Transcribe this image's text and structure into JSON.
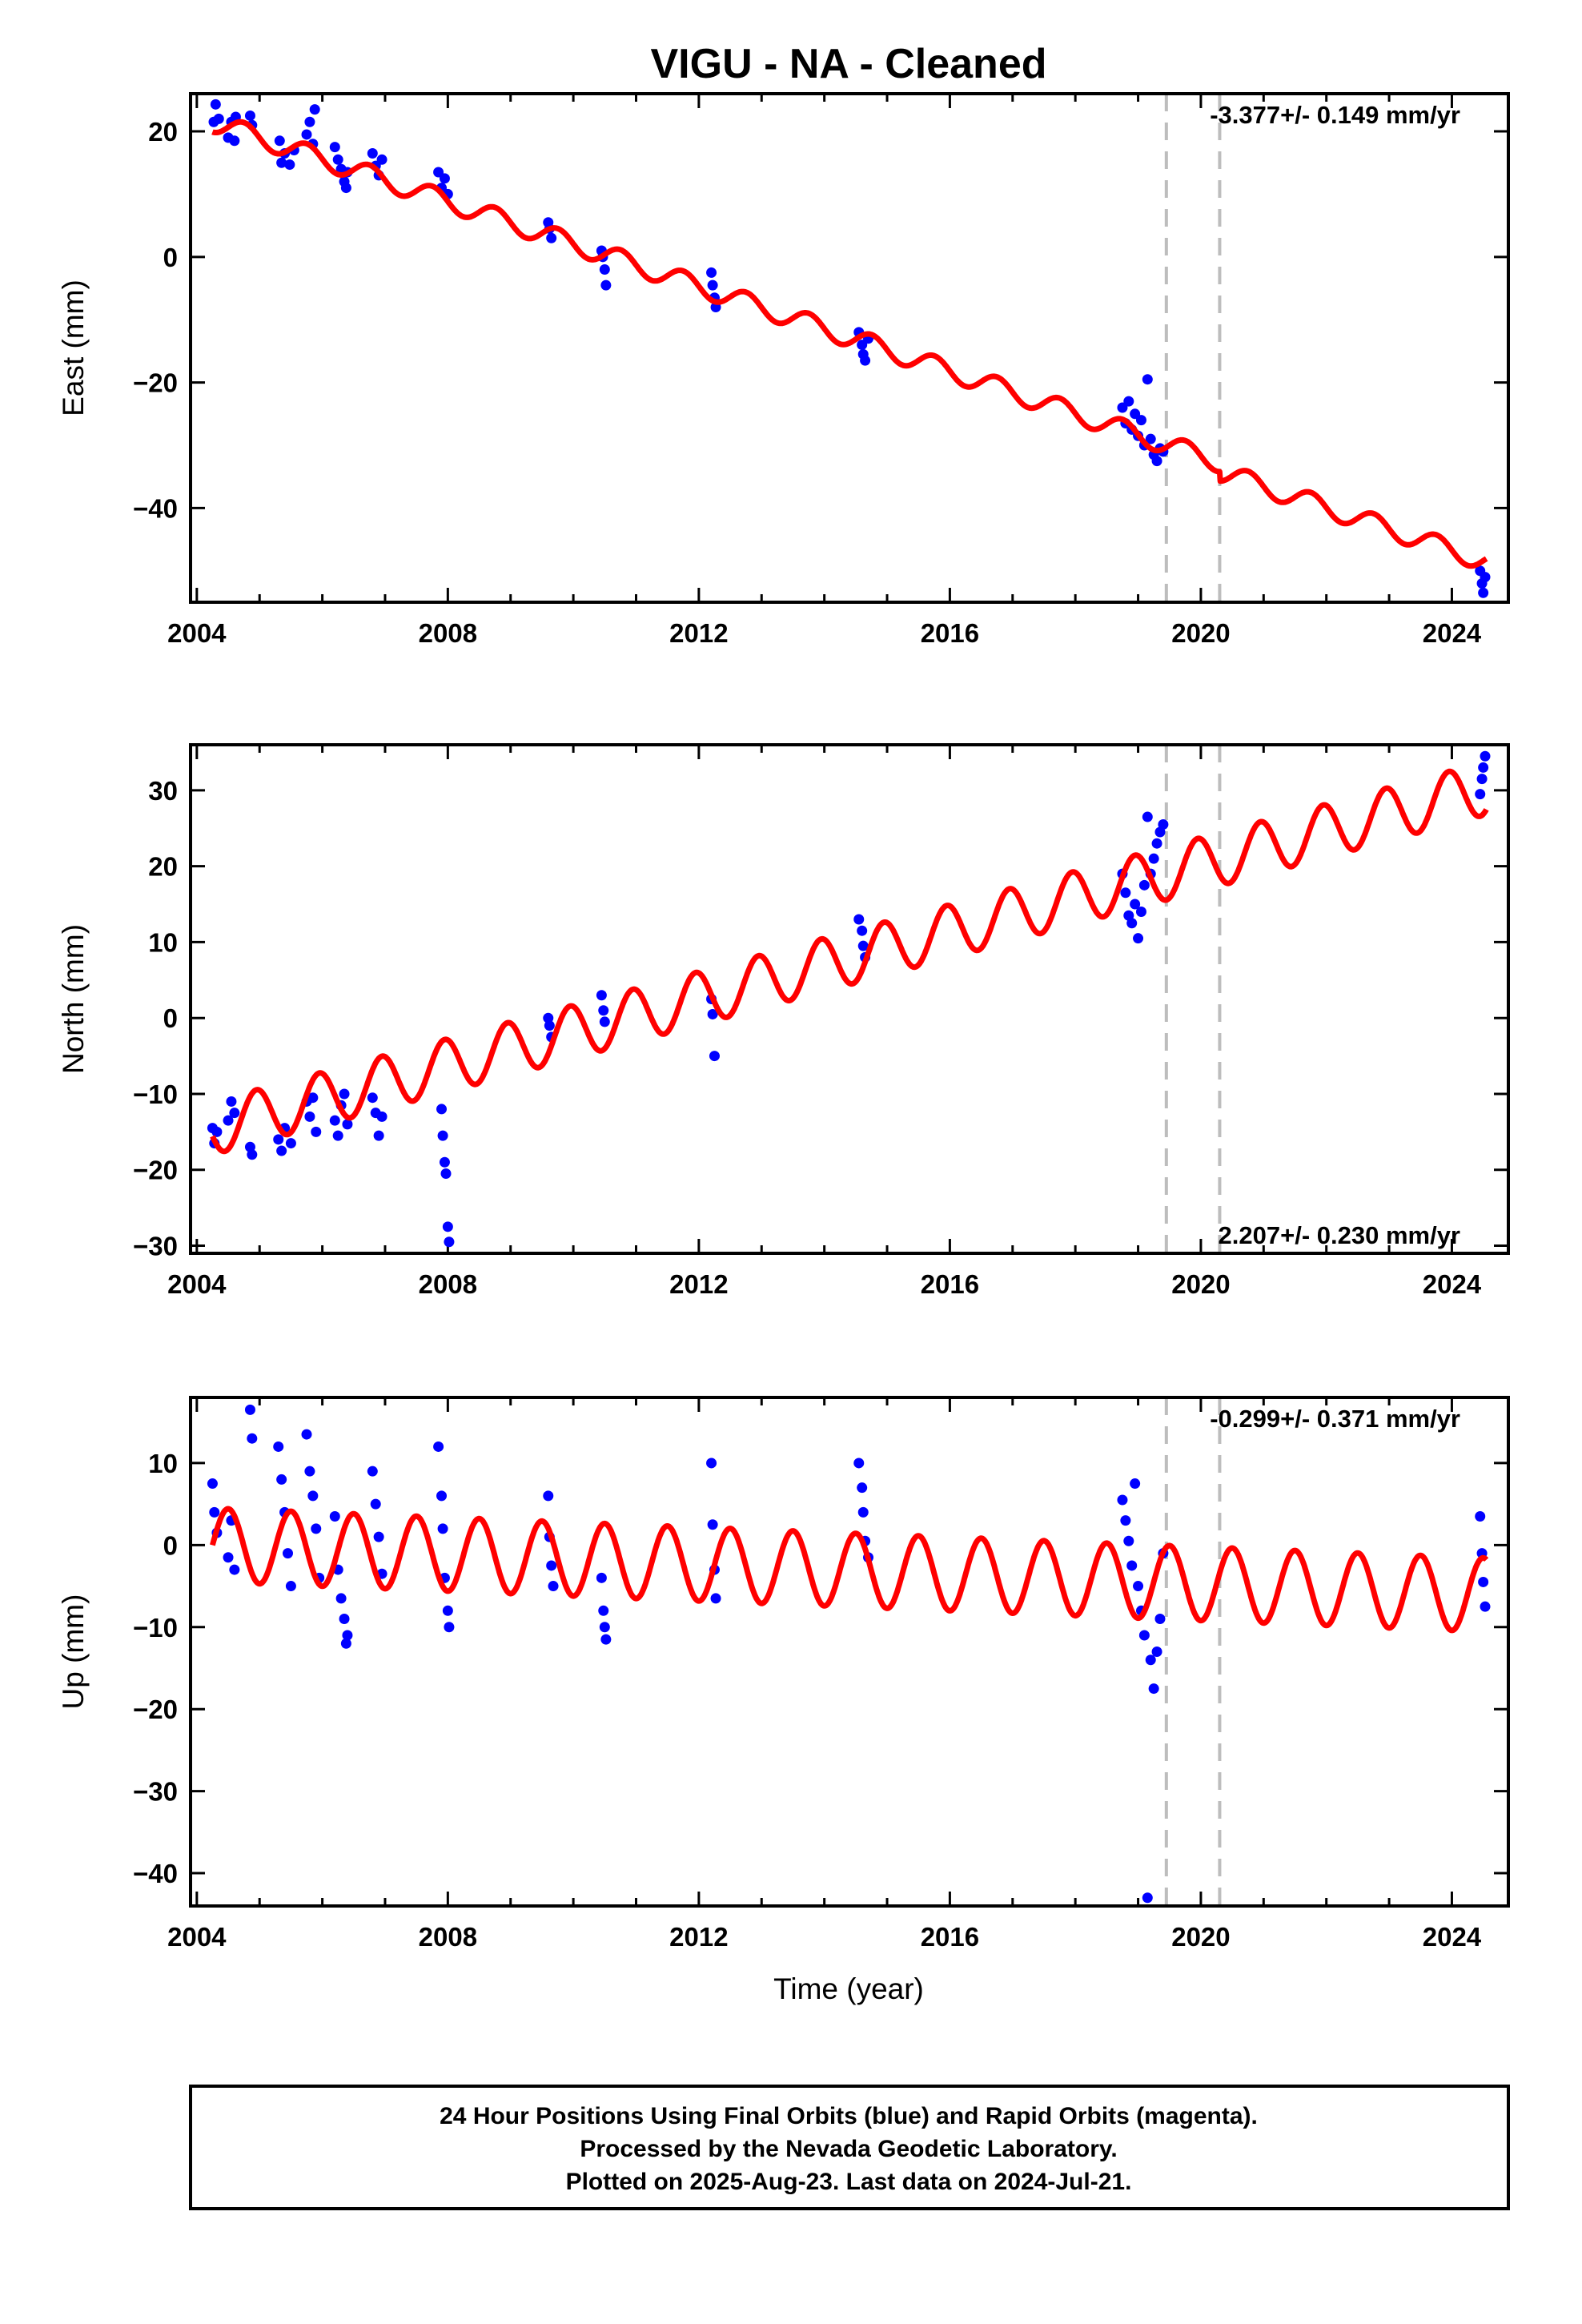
{
  "chart_data": {
    "title": "VIGU  - NA - Cleaned",
    "type": "scatter",
    "xlabel": "Time (year)",
    "xlim": [
      2003.9,
      2024.9
    ],
    "x_ticks": [
      2004,
      2008,
      2012,
      2016,
      2020,
      2024
    ],
    "vertical_dashed_lines": [
      2019.45,
      2020.3
    ],
    "marker_color": "#0000ff",
    "model_color": "#ff0000",
    "dashed_line_color": "#bdbdbd",
    "panels": [
      {
        "name": "east",
        "ylabel": "East (mm)",
        "ylim": [
          -55,
          26
        ],
        "y_ticks": [
          -40,
          -20,
          0,
          20
        ],
        "rate_label": "-3.377+/- 0.149 mm/yr",
        "rate_position": "top-right",
        "rate": -3.377,
        "intercept": 21.5,
        "seasonal": [
          {
            "amplitude": 1.6,
            "phase_peak": 0.75
          }
        ],
        "step_offsets": [
          {
            "year": 2020.3,
            "offset": -1.5
          }
        ],
        "observations": [
          {
            "year": 2004.27,
            "value": 21.5
          },
          {
            "year": 2004.3,
            "value": 24.3
          },
          {
            "year": 2004.35,
            "value": 22.0
          },
          {
            "year": 2004.5,
            "value": 19.0
          },
          {
            "year": 2004.55,
            "value": 21.5
          },
          {
            "year": 2004.6,
            "value": 18.5
          },
          {
            "year": 2004.62,
            "value": 22.3
          },
          {
            "year": 2004.85,
            "value": 22.5
          },
          {
            "year": 2004.88,
            "value": 21.0
          },
          {
            "year": 2005.32,
            "value": 18.5
          },
          {
            "year": 2005.35,
            "value": 15.0
          },
          {
            "year": 2005.4,
            "value": 16.5
          },
          {
            "year": 2005.48,
            "value": 14.7
          },
          {
            "year": 2005.55,
            "value": 17.0
          },
          {
            "year": 2005.75,
            "value": 19.5
          },
          {
            "year": 2005.8,
            "value": 21.5
          },
          {
            "year": 2005.85,
            "value": 18.0
          },
          {
            "year": 2005.88,
            "value": 23.5
          },
          {
            "year": 2006.2,
            "value": 17.5
          },
          {
            "year": 2006.25,
            "value": 15.5
          },
          {
            "year": 2006.3,
            "value": 14.0
          },
          {
            "year": 2006.35,
            "value": 12.0
          },
          {
            "year": 2006.38,
            "value": 11.0
          },
          {
            "year": 2006.4,
            "value": 13.5
          },
          {
            "year": 2006.8,
            "value": 16.5
          },
          {
            "year": 2006.85,
            "value": 14.5
          },
          {
            "year": 2006.9,
            "value": 13.0
          },
          {
            "year": 2006.95,
            "value": 15.5
          },
          {
            "year": 2007.85,
            "value": 13.5
          },
          {
            "year": 2007.9,
            "value": 11.0
          },
          {
            "year": 2007.95,
            "value": 12.5
          },
          {
            "year": 2008.0,
            "value": 10.0
          },
          {
            "year": 2009.6,
            "value": 5.5
          },
          {
            "year": 2009.62,
            "value": 4.5
          },
          {
            "year": 2009.65,
            "value": 3.0
          },
          {
            "year": 2010.45,
            "value": 1.0
          },
          {
            "year": 2010.47,
            "value": 0.0
          },
          {
            "year": 2010.5,
            "value": -2.0
          },
          {
            "year": 2010.52,
            "value": -4.5
          },
          {
            "year": 2012.2,
            "value": -2.5
          },
          {
            "year": 2012.22,
            "value": -4.5
          },
          {
            "year": 2012.25,
            "value": -6.5
          },
          {
            "year": 2012.27,
            "value": -8.0
          },
          {
            "year": 2014.55,
            "value": -12.0
          },
          {
            "year": 2014.6,
            "value": -14.0
          },
          {
            "year": 2014.62,
            "value": -15.5
          },
          {
            "year": 2014.65,
            "value": -16.5
          },
          {
            "year": 2014.7,
            "value": -13.0
          },
          {
            "year": 2018.75,
            "value": -24.0
          },
          {
            "year": 2018.8,
            "value": -26.5
          },
          {
            "year": 2018.85,
            "value": -23.0
          },
          {
            "year": 2018.9,
            "value": -27.5
          },
          {
            "year": 2018.95,
            "value": -25.0
          },
          {
            "year": 2019.0,
            "value": -28.5
          },
          {
            "year": 2019.05,
            "value": -26.0
          },
          {
            "year": 2019.1,
            "value": -30.0
          },
          {
            "year": 2019.15,
            "value": -19.5
          },
          {
            "year": 2019.2,
            "value": -29.0
          },
          {
            "year": 2019.25,
            "value": -31.5
          },
          {
            "year": 2019.3,
            "value": -32.5
          },
          {
            "year": 2019.35,
            "value": -30.5
          },
          {
            "year": 2019.4,
            "value": -31.0
          },
          {
            "year": 2024.45,
            "value": -50.0
          },
          {
            "year": 2024.48,
            "value": -52.0
          },
          {
            "year": 2024.5,
            "value": -53.5
          },
          {
            "year": 2024.53,
            "value": -51.0
          }
        ]
      },
      {
        "name": "north",
        "ylabel": "North (mm)",
        "ylim": [
          -31,
          36
        ],
        "y_ticks": [
          -30,
          -20,
          -10,
          0,
          10,
          20,
          30
        ],
        "rate_label": "2.207+/- 0.230 mm/yr",
        "rate_position": "bottom-right",
        "rate": 2.207,
        "intercept": -14.5,
        "seasonal": [
          {
            "amplitude": 3.5,
            "phase_peak": 0.95
          }
        ],
        "step_offsets": [],
        "observations": [
          {
            "year": 2004.25,
            "value": -14.5
          },
          {
            "year": 2004.28,
            "value": -16.5
          },
          {
            "year": 2004.32,
            "value": -15.0
          },
          {
            "year": 2004.5,
            "value": -13.5
          },
          {
            "year": 2004.55,
            "value": -11.0
          },
          {
            "year": 2004.6,
            "value": -12.5
          },
          {
            "year": 2004.85,
            "value": -17.0
          },
          {
            "year": 2004.88,
            "value": -18.0
          },
          {
            "year": 2005.3,
            "value": -16.0
          },
          {
            "year": 2005.35,
            "value": -17.5
          },
          {
            "year": 2005.4,
            "value": -14.5
          },
          {
            "year": 2005.5,
            "value": -16.5
          },
          {
            "year": 2005.75,
            "value": -11.0
          },
          {
            "year": 2005.8,
            "value": -13.0
          },
          {
            "year": 2005.85,
            "value": -10.5
          },
          {
            "year": 2005.9,
            "value": -15.0
          },
          {
            "year": 2006.2,
            "value": -13.5
          },
          {
            "year": 2006.25,
            "value": -15.5
          },
          {
            "year": 2006.3,
            "value": -11.5
          },
          {
            "year": 2006.35,
            "value": -10.0
          },
          {
            "year": 2006.4,
            "value": -14.0
          },
          {
            "year": 2006.8,
            "value": -10.5
          },
          {
            "year": 2006.85,
            "value": -12.5
          },
          {
            "year": 2006.9,
            "value": -15.5
          },
          {
            "year": 2006.95,
            "value": -13.0
          },
          {
            "year": 2007.9,
            "value": -12.0
          },
          {
            "year": 2007.92,
            "value": -15.5
          },
          {
            "year": 2007.95,
            "value": -19.0
          },
          {
            "year": 2007.97,
            "value": -20.5
          },
          {
            "year": 2008.0,
            "value": -27.5
          },
          {
            "year": 2008.02,
            "value": -29.5
          },
          {
            "year": 2009.6,
            "value": 0.0
          },
          {
            "year": 2009.62,
            "value": -1.0
          },
          {
            "year": 2009.65,
            "value": -2.5
          },
          {
            "year": 2010.45,
            "value": 3.0
          },
          {
            "year": 2010.48,
            "value": 1.0
          },
          {
            "year": 2010.5,
            "value": -0.5
          },
          {
            "year": 2012.2,
            "value": 2.5
          },
          {
            "year": 2012.22,
            "value": 0.5
          },
          {
            "year": 2012.25,
            "value": -5.0
          },
          {
            "year": 2014.55,
            "value": 13.0
          },
          {
            "year": 2014.6,
            "value": 11.5
          },
          {
            "year": 2014.62,
            "value": 9.5
          },
          {
            "year": 2014.65,
            "value": 8.0
          },
          {
            "year": 2018.75,
            "value": 19.0
          },
          {
            "year": 2018.8,
            "value": 16.5
          },
          {
            "year": 2018.85,
            "value": 13.5
          },
          {
            "year": 2018.9,
            "value": 12.5
          },
          {
            "year": 2018.95,
            "value": 15.0
          },
          {
            "year": 2019.0,
            "value": 10.5
          },
          {
            "year": 2019.05,
            "value": 14.0
          },
          {
            "year": 2019.1,
            "value": 17.5
          },
          {
            "year": 2019.15,
            "value": 26.5
          },
          {
            "year": 2019.2,
            "value": 19.0
          },
          {
            "year": 2019.25,
            "value": 21.0
          },
          {
            "year": 2019.3,
            "value": 23.0
          },
          {
            "year": 2019.35,
            "value": 24.5
          },
          {
            "year": 2019.4,
            "value": 25.5
          },
          {
            "year": 2024.45,
            "value": 29.5
          },
          {
            "year": 2024.48,
            "value": 31.5
          },
          {
            "year": 2024.5,
            "value": 33.0
          },
          {
            "year": 2024.53,
            "value": 34.5
          }
        ]
      },
      {
        "name": "up",
        "ylabel": "Up (mm)",
        "ylim": [
          -44,
          18
        ],
        "y_ticks": [
          -40,
          -30,
          -20,
          -10,
          0,
          10
        ],
        "rate_label": "-0.299+/- 0.371 mm/yr",
        "rate_position": "top-right",
        "rate": -0.299,
        "intercept": 0.0,
        "seasonal": [
          {
            "amplitude": 4.5,
            "phase_peak": 0.5
          }
        ],
        "step_offsets": [],
        "observations": [
          {
            "year": 2004.25,
            "value": 7.5
          },
          {
            "year": 2004.28,
            "value": 4.0
          },
          {
            "year": 2004.32,
            "value": 1.5
          },
          {
            "year": 2004.5,
            "value": -1.5
          },
          {
            "year": 2004.55,
            "value": 3.0
          },
          {
            "year": 2004.6,
            "value": -3.0
          },
          {
            "year": 2004.85,
            "value": 16.5
          },
          {
            "year": 2004.88,
            "value": 13.0
          },
          {
            "year": 2005.3,
            "value": 12.0
          },
          {
            "year": 2005.35,
            "value": 8.0
          },
          {
            "year": 2005.4,
            "value": 4.0
          },
          {
            "year": 2005.45,
            "value": -1.0
          },
          {
            "year": 2005.5,
            "value": -5.0
          },
          {
            "year": 2005.75,
            "value": 13.5
          },
          {
            "year": 2005.8,
            "value": 9.0
          },
          {
            "year": 2005.85,
            "value": 6.0
          },
          {
            "year": 2005.9,
            "value": 2.0
          },
          {
            "year": 2005.95,
            "value": -4.0
          },
          {
            "year": 2006.2,
            "value": 3.5
          },
          {
            "year": 2006.25,
            "value": -3.0
          },
          {
            "year": 2006.3,
            "value": -6.5
          },
          {
            "year": 2006.35,
            "value": -9.0
          },
          {
            "year": 2006.38,
            "value": -12.0
          },
          {
            "year": 2006.4,
            "value": -11.0
          },
          {
            "year": 2006.8,
            "value": 9.0
          },
          {
            "year": 2006.85,
            "value": 5.0
          },
          {
            "year": 2006.9,
            "value": 1.0
          },
          {
            "year": 2006.95,
            "value": -3.5
          },
          {
            "year": 2007.85,
            "value": 12.0
          },
          {
            "year": 2007.9,
            "value": 6.0
          },
          {
            "year": 2007.92,
            "value": 2.0
          },
          {
            "year": 2007.95,
            "value": -4.0
          },
          {
            "year": 2008.0,
            "value": -8.0
          },
          {
            "year": 2008.02,
            "value": -10.0
          },
          {
            "year": 2009.6,
            "value": 6.0
          },
          {
            "year": 2009.62,
            "value": 1.0
          },
          {
            "year": 2009.65,
            "value": -2.5
          },
          {
            "year": 2009.68,
            "value": -5.0
          },
          {
            "year": 2010.45,
            "value": -4.0
          },
          {
            "year": 2010.48,
            "value": -8.0
          },
          {
            "year": 2010.5,
            "value": -10.0
          },
          {
            "year": 2010.52,
            "value": -11.5
          },
          {
            "year": 2012.2,
            "value": 10.0
          },
          {
            "year": 2012.22,
            "value": 2.5
          },
          {
            "year": 2012.25,
            "value": -3.0
          },
          {
            "year": 2012.27,
            "value": -6.5
          },
          {
            "year": 2014.55,
            "value": 10.0
          },
          {
            "year": 2014.6,
            "value": 7.0
          },
          {
            "year": 2014.62,
            "value": 4.0
          },
          {
            "year": 2014.65,
            "value": 0.5
          },
          {
            "year": 2014.7,
            "value": -1.5
          },
          {
            "year": 2018.75,
            "value": 5.5
          },
          {
            "year": 2018.8,
            "value": 3.0
          },
          {
            "year": 2018.85,
            "value": 0.5
          },
          {
            "year": 2018.9,
            "value": -2.5
          },
          {
            "year": 2018.95,
            "value": 7.5
          },
          {
            "year": 2019.0,
            "value": -5.0
          },
          {
            "year": 2019.05,
            "value": -8.0
          },
          {
            "year": 2019.1,
            "value": -11.0
          },
          {
            "year": 2019.15,
            "value": -43.0
          },
          {
            "year": 2019.2,
            "value": -14.0
          },
          {
            "year": 2019.25,
            "value": -17.5
          },
          {
            "year": 2019.3,
            "value": -13.0
          },
          {
            "year": 2019.35,
            "value": -9.0
          },
          {
            "year": 2019.4,
            "value": -1.0
          },
          {
            "year": 2024.45,
            "value": 3.5
          },
          {
            "year": 2024.48,
            "value": -1.0
          },
          {
            "year": 2024.5,
            "value": -4.5
          },
          {
            "year": 2024.53,
            "value": -7.5
          }
        ]
      }
    ]
  },
  "footer": {
    "line1": "24 Hour Positions Using Final Orbits (blue) and Rapid Orbits (magenta).",
    "line2": "Processed by the Nevada Geodetic Laboratory.",
    "line3": "Plotted on 2025-Aug-23. Last data on 2024-Jul-21."
  }
}
